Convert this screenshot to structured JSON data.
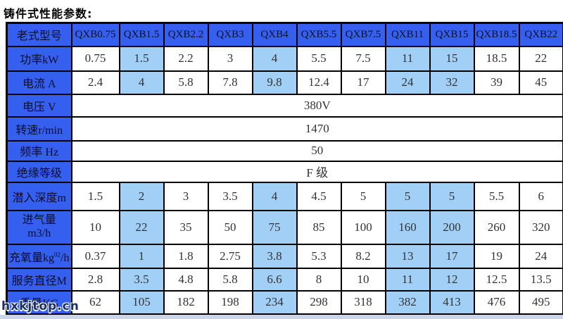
{
  "title": "铸件式性能参数:",
  "watermark": "hxkjtop.cn",
  "colors": {
    "header_blue": "#3560ef",
    "highlight_blue": "#a1cff5",
    "border_black": "#000000",
    "header_text": "#0d0d2b",
    "cell_text": "#333333",
    "footer_strip": "#ccd4ea"
  },
  "table": {
    "corner_label": "老式型号",
    "models": [
      "QXB0.75",
      "QXB1.5",
      "QXB2.2",
      "QXB3",
      "QXB4",
      "QXB5.5",
      "QXB7.5",
      "QXB11",
      "QXB15",
      "QXB18.5",
      "QXB22"
    ],
    "highlight_columns": [
      1,
      4,
      7,
      8
    ],
    "rows": [
      {
        "label": "功率kW",
        "values": [
          "0.75",
          "1.5",
          "2.2",
          "3",
          "4",
          "5.5",
          "7.5",
          "11",
          "15",
          "18.5",
          "22"
        ]
      },
      {
        "label": "电流 A",
        "values": [
          "2.4",
          "4",
          "5.8",
          "7.8",
          "9.8",
          "12.4",
          "17",
          "24",
          "32",
          "39",
          "45"
        ]
      },
      {
        "label": "电压 V",
        "merged": "380V"
      },
      {
        "label": "转速r/min",
        "merged": "1470"
      },
      {
        "label": "频率 Hz",
        "merged": "50"
      },
      {
        "label": "绝缘等级",
        "merged": "F 级"
      },
      {
        "label": "潜入深度m",
        "values": [
          "1.5",
          "2",
          "3",
          "3.5",
          "4",
          "4.5",
          "5",
          "5",
          "5",
          "5.5",
          "6"
        ]
      },
      {
        "label": "进气量",
        "label_line2": "m3/h",
        "values": [
          "10",
          "22",
          "35",
          "50",
          "75",
          "85",
          "100",
          "160",
          "200",
          "260",
          "320"
        ]
      },
      {
        "label": "充氧量kg",
        "label_sup": "02",
        "label_tail": "/h",
        "values": [
          "0.37",
          "1",
          "1.8",
          "2.75",
          "3.8",
          "5.3",
          "8.2",
          "13",
          "17",
          "19",
          "24"
        ]
      },
      {
        "label": "服务直径M",
        "values": [
          "2.8",
          "3.5",
          "4.8",
          "5.8",
          "6.6",
          "8",
          "10",
          "11",
          "12",
          "12.5",
          "13.5"
        ]
      },
      {
        "label": "重量KG",
        "values": [
          "62",
          "105",
          "182",
          "198",
          "234",
          "298",
          "318",
          "382",
          "413",
          "476",
          "495"
        ]
      }
    ]
  }
}
